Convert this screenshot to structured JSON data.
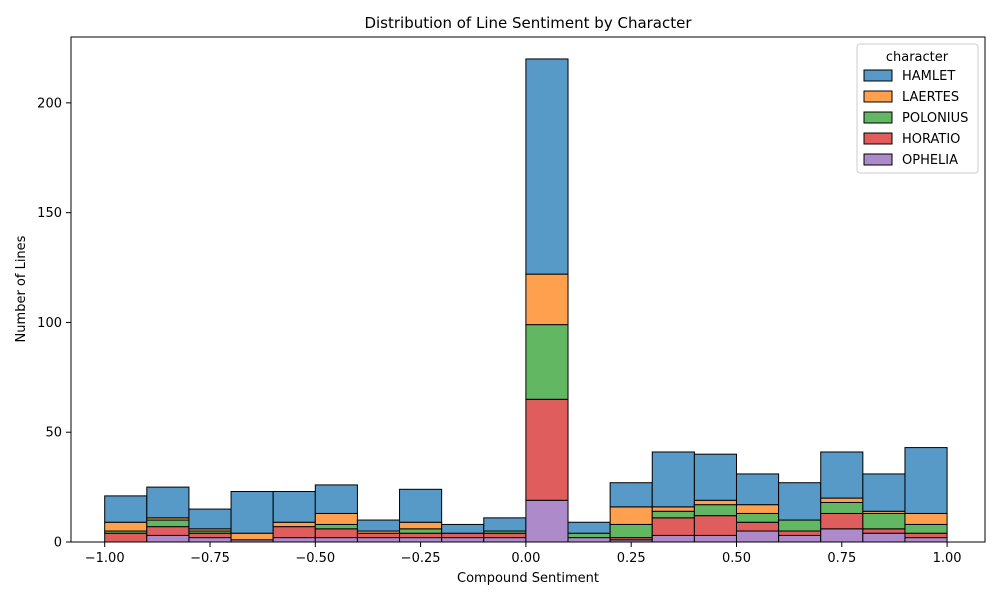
{
  "chart_data": {
    "type": "bar",
    "subtype": "stacked-histogram",
    "title": "Distribution of Line Sentiment by Character",
    "xlabel": "Compound Sentiment",
    "ylabel": "Number of Lines",
    "xlim": [
      -1.08,
      1.09
    ],
    "ylim": [
      0,
      230
    ],
    "xticks": [
      -1.0,
      -0.75,
      -0.5,
      -0.25,
      0.0,
      0.25,
      0.5,
      0.75,
      1.0
    ],
    "xtick_labels": [
      "−1.00",
      "−0.75",
      "−0.50",
      "−0.25",
      "0.00",
      "0.25",
      "0.50",
      "0.75",
      "1.00"
    ],
    "yticks": [
      0,
      50,
      100,
      150,
      200
    ],
    "ytick_labels": [
      "0",
      "50",
      "100",
      "150",
      "200"
    ],
    "bin_edges": [
      -1.0,
      -0.9,
      -0.8,
      -0.7,
      -0.6,
      -0.5,
      -0.4,
      -0.3,
      -0.2,
      -0.1,
      0.0,
      0.1,
      0.2,
      0.3,
      0.4,
      0.5,
      0.6,
      0.7,
      0.8,
      0.9,
      1.0
    ],
    "legend": {
      "title": "character",
      "position": "top-right"
    },
    "grid": false,
    "series": [
      {
        "name": "HAMLET",
        "color": "#5799c7",
        "values": [
          12,
          14,
          9,
          19,
          14,
          13,
          5,
          15,
          4,
          6,
          98,
          5,
          11,
          25,
          21,
          14,
          17,
          21,
          17,
          30
        ]
      },
      {
        "name": "LAERTES",
        "color": "#ffa04f",
        "values": [
          4,
          1,
          1,
          3,
          2,
          5,
          1,
          3,
          0,
          0,
          23,
          0,
          8,
          2,
          2,
          4,
          0,
          2,
          1,
          5
        ]
      },
      {
        "name": "POLONIUS",
        "color": "#62b862",
        "values": [
          1,
          3,
          1,
          0,
          0,
          2,
          0,
          2,
          0,
          1,
          34,
          2,
          6,
          3,
          5,
          4,
          5,
          5,
          7,
          4
        ]
      },
      {
        "name": "HORATIO",
        "color": "#e05d5e",
        "values": [
          4,
          4,
          2,
          0,
          5,
          4,
          2,
          2,
          2,
          2,
          46,
          0,
          1,
          8,
          9,
          4,
          2,
          7,
          2,
          2
        ]
      },
      {
        "name": "OPHELIA",
        "color": "#ad8bca",
        "values": [
          0,
          3,
          2,
          1,
          2,
          2,
          2,
          2,
          2,
          2,
          19,
          2,
          1,
          3,
          3,
          5,
          3,
          6,
          4,
          2
        ]
      }
    ]
  }
}
